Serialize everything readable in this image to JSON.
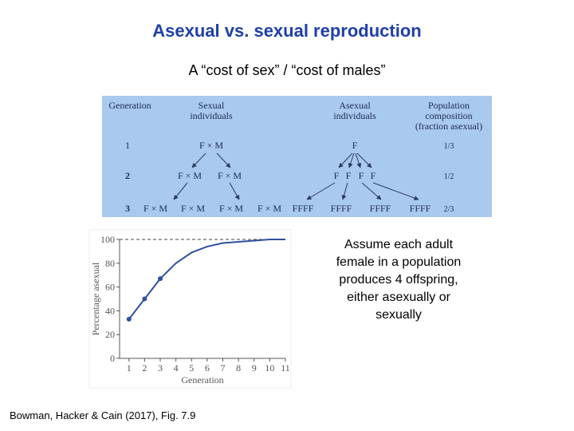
{
  "header": {
    "title": "Asexual vs. sexual reproduction",
    "subtitle": "A “cost of sex” / “cost of males”"
  },
  "diagram": {
    "headers": [
      [
        "Generation"
      ],
      [
        "Sexual",
        "individuals"
      ],
      [
        "Asexual",
        "individuals"
      ],
      [
        "Population",
        "composition",
        "(fraction asexual)"
      ]
    ],
    "rows": [
      {
        "generation": "1",
        "sexual": [
          "F × M"
        ],
        "asexual": [
          "F"
        ],
        "fraction": "1/3"
      },
      {
        "generation": "2",
        "sexual": [
          "F × M",
          "F × M"
        ],
        "asexual": [
          "F",
          "F",
          "F",
          "F"
        ],
        "fraction": "1/2"
      },
      {
        "generation": "3",
        "sexual": [
          "F × M",
          "F × M",
          "F × M",
          "F × M"
        ],
        "asexual": [
          "FFFF",
          "FFFF",
          "FFFF",
          "FFFF"
        ],
        "fraction": "2/3"
      }
    ]
  },
  "chart_data": {
    "type": "line",
    "x_label": "Generation",
    "y_label": "Percentage asexual",
    "x": [
      1,
      2,
      3,
      4,
      5,
      6,
      7,
      8,
      9,
      10,
      11
    ],
    "series": [
      {
        "color": "#2f4f9e",
        "values": [
          33,
          50,
          67,
          80,
          89,
          94,
          97,
          98,
          99,
          100,
          100
        ]
      }
    ],
    "marked_points": 3,
    "reference_line": 100,
    "xlim": [
      0.4,
      11
    ],
    "ylim": [
      0,
      100
    ],
    "xticks": [
      1,
      2,
      3,
      4,
      5,
      6,
      7,
      8,
      9,
      10,
      11
    ],
    "yticks": [
      0,
      20,
      40,
      60,
      80,
      100
    ]
  },
  "note": "Assume each adult female in a population produces 4 offspring, either asexually or sexually",
  "citation": "Bowman, Hacker & Cain (2017), Fig. 7.9"
}
